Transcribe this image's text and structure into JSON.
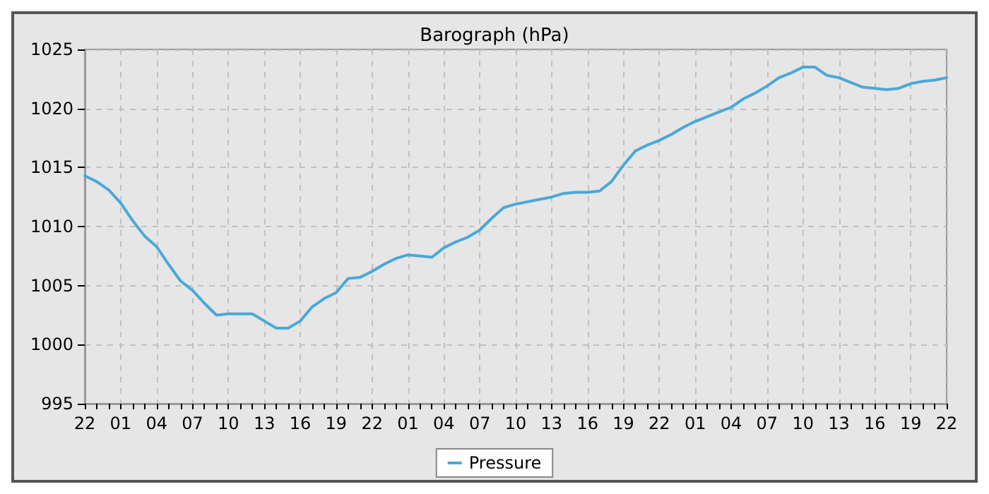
{
  "chart_data": {
    "type": "line",
    "title": "Barograph (hPa)",
    "categories": [
      "22",
      null,
      null,
      "01",
      null,
      null,
      "04",
      null,
      null,
      "07",
      null,
      null,
      "10",
      null,
      null,
      "13",
      null,
      null,
      "16",
      null,
      null,
      "19",
      null,
      null,
      "22",
      null,
      null,
      "01",
      null,
      null,
      "04",
      null,
      null,
      "07",
      null,
      null,
      "10",
      null,
      null,
      "13",
      null,
      null,
      "16",
      null,
      null,
      "19",
      null,
      null,
      "22",
      null,
      null,
      "01",
      null,
      null,
      "04",
      null,
      null,
      "07",
      null,
      null,
      "10",
      null,
      null,
      "13",
      null,
      null,
      "16",
      null,
      null,
      "19",
      null,
      null,
      "22"
    ],
    "series": [
      {
        "name": "Pressure",
        "color": "#4aa8d8",
        "values": [
          1014.3,
          1013.8,
          1013.1,
          1012.0,
          1010.5,
          1009.2,
          1008.3,
          1006.8,
          1005.4,
          1004.6,
          1003.5,
          1002.5,
          1002.6,
          1002.6,
          1002.6,
          1002.0,
          1001.4,
          1001.4,
          1002.0,
          1003.2,
          1003.9,
          1004.4,
          1005.6,
          1005.7,
          1006.2,
          1006.8,
          1007.3,
          1007.6,
          1007.5,
          1007.4,
          1008.2,
          1008.7,
          1009.1,
          1009.7,
          1010.7,
          1011.6,
          1011.9,
          1012.1,
          1012.3,
          1012.5,
          1012.8,
          1012.9,
          1012.9,
          1013.0,
          1013.8,
          1015.2,
          1016.4,
          1016.9,
          1017.3,
          1017.8,
          1018.4,
          1018.9,
          1019.3,
          1019.7,
          1020.1,
          1020.8,
          1021.3,
          1021.9,
          1022.6,
          1023.0,
          1023.5,
          1023.5,
          1022.8,
          1022.6,
          1022.2,
          1021.8,
          1021.7,
          1021.6,
          1021.7,
          1022.1,
          1022.3,
          1022.4,
          1022.6
        ]
      }
    ],
    "ylim": [
      995,
      1025
    ],
    "yticks": [
      995,
      1000,
      1005,
      1010,
      1015,
      1020,
      1025
    ],
    "grid": true,
    "legend": "bottom",
    "marker": "none",
    "line_style": "solid"
  }
}
